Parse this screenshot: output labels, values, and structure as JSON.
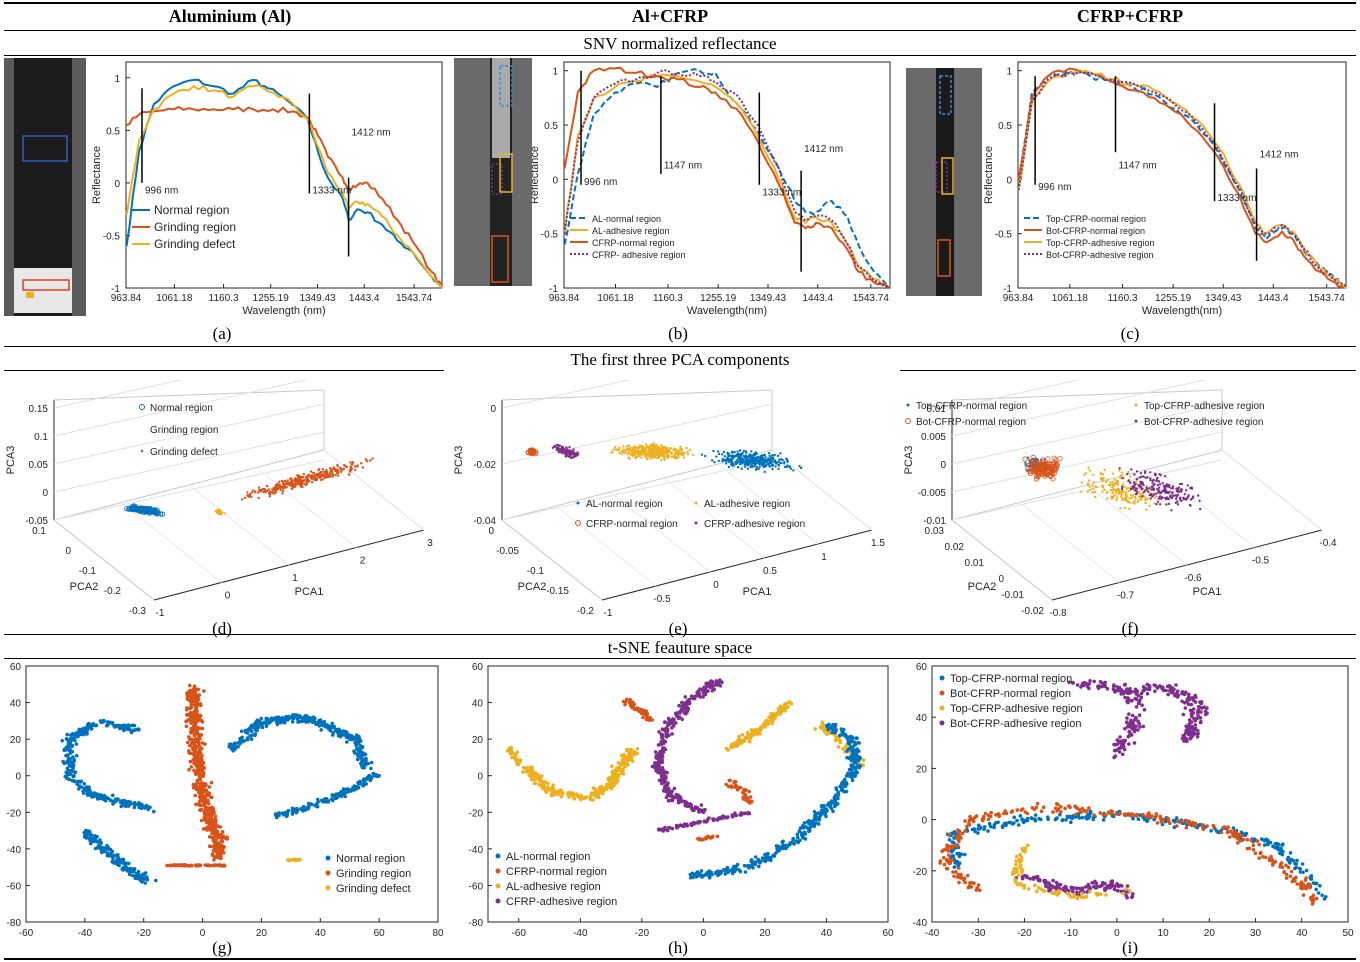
{
  "headers": {
    "col1": "Aluminium (Al)",
    "col2": "Al+CFRP",
    "col3": "CFRP+CFRP"
  },
  "sections": {
    "row1": "SNV normalized reflectance",
    "row2": "The first three PCA components",
    "row3": "t-SNE feauture space"
  },
  "captions": {
    "a": "(a)",
    "b": "(b)",
    "c": "(c)",
    "d": "(d)",
    "e": "(e)",
    "f": "(f)",
    "g": "(g)",
    "h": "(h)",
    "i": "(i)"
  },
  "colors": {
    "blue": "#0072BD",
    "orange": "#D95319",
    "yellow": "#EDB120",
    "purple": "#7E2F8E"
  },
  "chart_data": [
    {
      "id": "a",
      "type": "line",
      "xlabel": "Wavelength (nm)",
      "ylabel": "Reflectance",
      "xticks": [
        "963.84",
        "1061.18",
        "1160.3",
        "1255.19",
        "1349.43",
        "1443.4",
        "1543.74"
      ],
      "yticks": [
        "1",
        "0.5",
        "0",
        "-0.5",
        "-1"
      ],
      "xlim": [
        963.84,
        1600
      ],
      "ylim": [
        -1,
        1.15
      ],
      "annotations": [
        {
          "x": 996,
          "text": "996 nm"
        },
        {
          "x": 1333,
          "text": "1333 nm"
        },
        {
          "x": 1412,
          "text": "1412 nm"
        }
      ],
      "legend": "bottom-left",
      "series": [
        {
          "name": "Normal region",
          "color": "#0072BD",
          "x": [
            965,
            990,
            1020,
            1060,
            1100,
            1140,
            1180,
            1220,
            1250,
            1290,
            1330,
            1350,
            1370,
            1400,
            1412,
            1430,
            1450,
            1480,
            1510,
            1540,
            1580,
            1600
          ],
          "y": [
            -0.6,
            0.3,
            0.75,
            0.92,
            0.98,
            0.92,
            0.85,
            0.98,
            0.9,
            0.78,
            0.6,
            0.3,
            0.05,
            -0.15,
            -0.35,
            -0.25,
            -0.28,
            -0.4,
            -0.55,
            -0.65,
            -0.9,
            -1.0
          ]
        },
        {
          "name": "Grinding region",
          "color": "#D95319",
          "x": [
            965,
            990,
            1020,
            1060,
            1100,
            1140,
            1180,
            1220,
            1260,
            1300,
            1330,
            1350,
            1370,
            1400,
            1412,
            1430,
            1450,
            1480,
            1510,
            1540,
            1580,
            1600
          ],
          "y": [
            0.55,
            0.65,
            0.68,
            0.7,
            0.7,
            0.7,
            0.7,
            0.7,
            0.7,
            0.68,
            0.62,
            0.45,
            0.25,
            0.05,
            -0.05,
            -0.02,
            0.0,
            -0.15,
            -0.35,
            -0.55,
            -0.85,
            -1.0
          ]
        },
        {
          "name": "Grinding defect",
          "color": "#EDB120",
          "x": [
            965,
            990,
            1020,
            1060,
            1100,
            1140,
            1180,
            1220,
            1260,
            1300,
            1330,
            1350,
            1370,
            1400,
            1412,
            1430,
            1450,
            1480,
            1510,
            1540,
            1580,
            1600
          ],
          "y": [
            -0.3,
            0.4,
            0.7,
            0.85,
            0.92,
            0.88,
            0.82,
            0.92,
            0.86,
            0.75,
            0.6,
            0.35,
            0.1,
            -0.1,
            -0.25,
            -0.18,
            -0.2,
            -0.32,
            -0.5,
            -0.65,
            -0.9,
            -1.0
          ]
        }
      ]
    },
    {
      "id": "b",
      "type": "line",
      "xlabel": "Wavelength(nm)",
      "ylabel": "Reflectance",
      "xticks": [
        "963.84",
        "1061.18",
        "1160.3",
        "1255.19",
        "1349.43",
        "1443.4",
        "1543.74"
      ],
      "yticks": [
        "1",
        "0.5",
        "0",
        "-0.5",
        "-1"
      ],
      "xlim": [
        963.84,
        1580
      ],
      "ylim": [
        -1,
        1.08
      ],
      "annotations": [
        {
          "x": 996,
          "text": "996 nm"
        },
        {
          "x": 1147,
          "text": "1147 nm"
        },
        {
          "x": 1333,
          "text": "1333 nm"
        },
        {
          "x": 1412,
          "text": "1412 nm"
        }
      ],
      "legend": "bottom-left",
      "series": [
        {
          "name": "AL-normal region",
          "color": "#0072BD",
          "x": [
            965,
            990,
            1020,
            1060,
            1100,
            1140,
            1180,
            1220,
            1250,
            1290,
            1330,
            1370,
            1400,
            1420,
            1440,
            1470,
            1500,
            1520,
            1550,
            1580
          ],
          "y": [
            -0.6,
            0.05,
            0.6,
            0.8,
            0.88,
            0.85,
            0.98,
            1.0,
            0.98,
            0.7,
            0.45,
            0.1,
            -0.2,
            -0.3,
            -0.3,
            -0.2,
            -0.35,
            -0.6,
            -0.85,
            -1.0
          ]
        },
        {
          "name": "AL-adhesive region",
          "color": "#EDB120",
          "x": [
            965,
            990,
            1020,
            1060,
            1100,
            1140,
            1180,
            1220,
            1250,
            1290,
            1330,
            1370,
            1400,
            1420,
            1440,
            1470,
            1500,
            1520,
            1550,
            1580
          ],
          "y": [
            -0.5,
            0.4,
            0.75,
            0.85,
            0.9,
            0.95,
            0.95,
            0.9,
            0.85,
            0.7,
            0.4,
            0.0,
            -0.35,
            -0.4,
            -0.35,
            -0.4,
            -0.6,
            -0.8,
            -0.92,
            -1.0
          ]
        },
        {
          "name": "CFRP-normal region",
          "color": "#D95319",
          "x": [
            965,
            990,
            1020,
            1060,
            1100,
            1140,
            1180,
            1220,
            1250,
            1290,
            1330,
            1370,
            1400,
            1420,
            1440,
            1470,
            1500,
            1520,
            1550,
            1580
          ],
          "y": [
            0.1,
            0.8,
            1.0,
            1.02,
            0.98,
            0.95,
            0.92,
            0.85,
            0.8,
            0.65,
            0.35,
            -0.05,
            -0.4,
            -0.45,
            -0.4,
            -0.45,
            -0.65,
            -0.85,
            -0.95,
            -1.0
          ]
        },
        {
          "name": "CFRP- adhesive region",
          "color": "#7E2F8E",
          "x": [
            965,
            990,
            1020,
            1060,
            1100,
            1140,
            1180,
            1220,
            1250,
            1290,
            1330,
            1370,
            1400,
            1420,
            1440,
            1470,
            1500,
            1520,
            1550,
            1580
          ],
          "y": [
            -0.5,
            0.35,
            0.75,
            0.88,
            0.92,
            0.98,
            0.98,
            0.95,
            0.9,
            0.78,
            0.5,
            0.1,
            -0.3,
            -0.38,
            -0.33,
            -0.38,
            -0.6,
            -0.8,
            -0.93,
            -1.0
          ]
        }
      ]
    },
    {
      "id": "c",
      "type": "line",
      "xlabel": "Wavelength(nm)",
      "ylabel": "Reflectance",
      "xticks": [
        "963.84",
        "1061.18",
        "1160.3",
        "1255.19",
        "1349.43",
        "1443.4",
        "1543.74"
      ],
      "yticks": [
        "1",
        "0.5",
        "0",
        "-0.5",
        "-1"
      ],
      "xlim": [
        963.84,
        1580
      ],
      "ylim": [
        -1,
        1.08
      ],
      "annotations": [
        {
          "x": 996,
          "text": "996 nm"
        },
        {
          "x": 1147,
          "text": "1147 nm"
        },
        {
          "x": 1333,
          "text": "1333 nm"
        },
        {
          "x": 1412,
          "text": "1412 nm"
        }
      ],
      "legend": "bottom-left",
      "series": [
        {
          "name": "Top-CFRP-normal region",
          "color": "#0072BD",
          "x": [
            965,
            990,
            1020,
            1060,
            1100,
            1140,
            1180,
            1220,
            1260,
            1300,
            1340,
            1380,
            1410,
            1430,
            1460,
            1480,
            1500,
            1530,
            1560,
            1580
          ],
          "y": [
            0.0,
            0.8,
            0.95,
            1.0,
            0.95,
            0.9,
            0.85,
            0.78,
            0.65,
            0.5,
            0.25,
            -0.1,
            -0.45,
            -0.55,
            -0.45,
            -0.5,
            -0.65,
            -0.8,
            -0.92,
            -0.98
          ]
        },
        {
          "name": "Bot-CFRP-normal region",
          "color": "#D95319",
          "x": [
            965,
            990,
            1020,
            1060,
            1100,
            1140,
            1180,
            1220,
            1260,
            1300,
            1340,
            1380,
            1410,
            1430,
            1460,
            1480,
            1500,
            1530,
            1560,
            1580
          ],
          "y": [
            0.0,
            0.75,
            0.95,
            1.02,
            0.98,
            0.9,
            0.82,
            0.75,
            0.62,
            0.45,
            0.2,
            -0.15,
            -0.5,
            -0.58,
            -0.48,
            -0.55,
            -0.7,
            -0.85,
            -0.95,
            -1.0
          ]
        },
        {
          "name": "Top-CFRP-adhesive region",
          "color": "#EDB120",
          "x": [
            965,
            990,
            1020,
            1060,
            1100,
            1140,
            1180,
            1220,
            1260,
            1300,
            1340,
            1380,
            1410,
            1430,
            1460,
            1480,
            1500,
            1530,
            1560,
            1580
          ],
          "y": [
            -0.1,
            0.7,
            0.9,
            0.98,
            0.98,
            0.92,
            0.88,
            0.82,
            0.7,
            0.55,
            0.3,
            -0.05,
            -0.4,
            -0.5,
            -0.42,
            -0.48,
            -0.62,
            -0.82,
            -0.93,
            -1.0
          ]
        },
        {
          "name": "Bot-CFRP-adhesive region",
          "color": "#7E2F8E",
          "x": [
            965,
            990,
            1020,
            1060,
            1100,
            1140,
            1180,
            1220,
            1260,
            1300,
            1340,
            1380,
            1410,
            1430,
            1460,
            1480,
            1500,
            1530,
            1560,
            1580
          ],
          "y": [
            -0.1,
            0.72,
            0.92,
            0.98,
            0.98,
            0.92,
            0.88,
            0.8,
            0.68,
            0.52,
            0.28,
            -0.08,
            -0.42,
            -0.5,
            -0.42,
            -0.5,
            -0.64,
            -0.82,
            -0.93,
            -0.99
          ]
        }
      ]
    },
    {
      "id": "d",
      "type": "scatter",
      "xlabel": "PCA1",
      "ylabel": "PCA2",
      "zlabel": "PCA3",
      "zticks": [
        "0.15",
        "0.1",
        "0.05",
        "0",
        "-0.05"
      ],
      "yticks": [
        "0.1",
        "0",
        "-0.1",
        "-0.2",
        "-0.3"
      ],
      "xticks": [
        "-1",
        "0",
        "1",
        "2",
        "3"
      ],
      "legend": "top-left",
      "series": [
        {
          "name": "Normal region",
          "color": "#0072BD",
          "marker": "circle"
        },
        {
          "name": "Grinding region",
          "color": "#D95319",
          "marker": "none"
        },
        {
          "name": "Grinding defect",
          "color": "#D95319",
          "marker": "dot"
        }
      ]
    },
    {
      "id": "e",
      "type": "scatter",
      "xlabel": "PCA1",
      "ylabel": "PCA2",
      "zlabel": "PCA3",
      "zticks": [
        "0",
        "-0.02",
        "-0.04"
      ],
      "yticks": [
        "0",
        "-0.05",
        "-0.1",
        "-0.15",
        "-0.2"
      ],
      "xticks": [
        "-1",
        "-0.5",
        "0",
        "0.5",
        "1",
        "1.5"
      ],
      "legend": "bottom",
      "series": [
        {
          "name": "AL-normal region",
          "color": "#0072BD",
          "marker": "dot"
        },
        {
          "name": "AL-adhesive region",
          "color": "#EDB120",
          "marker": "dot"
        },
        {
          "name": "CFRP-normal region",
          "color": "#D95319",
          "marker": "circle"
        },
        {
          "name": "CFRP-adhesive region",
          "color": "#7E2F8E",
          "marker": "dot"
        }
      ]
    },
    {
      "id": "f",
      "type": "scatter",
      "xlabel": "PCA1",
      "ylabel": "PCA2",
      "zlabel": "PCA3",
      "zticks": [
        "0.01",
        "0.005",
        "0",
        "-0.005",
        "-0.01"
      ],
      "yticks": [
        "0.03",
        "0.02",
        "0.01",
        "0",
        "-0.01",
        "-0.02"
      ],
      "xticks": [
        "-0.8",
        "-0.7",
        "-0.6",
        "-0.5",
        "-0.4"
      ],
      "legend": "top",
      "series": [
        {
          "name": "Top-CFRP-normal region",
          "color": "#0072BD",
          "marker": "dot"
        },
        {
          "name": "Top-CFRP-adhesive region",
          "color": "#EDB120",
          "marker": "dot"
        },
        {
          "name": "Bot-CFRP-normal region",
          "color": "#D95319",
          "marker": "circle"
        },
        {
          "name": "Bot-CFRP-adhesive region",
          "color": "#7E2F8E",
          "marker": "dot"
        }
      ]
    },
    {
      "id": "g",
      "type": "scatter",
      "xlim": [
        -60,
        80
      ],
      "ylim": [
        -80,
        60
      ],
      "xticks": [
        "-60",
        "-40",
        "-20",
        "0",
        "20",
        "40",
        "60",
        "80"
      ],
      "yticks": [
        "60",
        "40",
        "20",
        "0",
        "-20",
        "-40",
        "-60",
        "-80"
      ],
      "legend": "bottom-right",
      "series": [
        {
          "name": "Normal region",
          "color": "#0072BD"
        },
        {
          "name": "Grinding region",
          "color": "#D95319"
        },
        {
          "name": "Grinding defect",
          "color": "#EDB120"
        }
      ]
    },
    {
      "id": "h",
      "type": "scatter",
      "xlim": [
        -70,
        60
      ],
      "ylim": [
        -80,
        60
      ],
      "xticks": [
        "-60",
        "-40",
        "-20",
        "0",
        "20",
        "40",
        "60"
      ],
      "yticks": [
        "60",
        "40",
        "20",
        "0",
        "-20",
        "-40",
        "-60",
        "-80"
      ],
      "legend": "bottom-left",
      "series": [
        {
          "name": "AL-normal region",
          "color": "#0072BD"
        },
        {
          "name": "CFRP-normal region",
          "color": "#D95319"
        },
        {
          "name": "AL-adhesive region",
          "color": "#EDB120"
        },
        {
          "name": "CFRP-adhesive region",
          "color": "#7E2F8E"
        }
      ]
    },
    {
      "id": "i",
      "type": "scatter",
      "xlim": [
        -40,
        50
      ],
      "ylim": [
        -40,
        60
      ],
      "xticks": [
        "-40",
        "-30",
        "-20",
        "-10",
        "0",
        "10",
        "20",
        "30",
        "40",
        "50"
      ],
      "yticks": [
        "60",
        "40",
        "20",
        "0",
        "-20",
        "-40"
      ],
      "legend": "top-left",
      "series": [
        {
          "name": "Top-CFRP-normal region",
          "color": "#0072BD"
        },
        {
          "name": "Bot-CFRP-normal region",
          "color": "#D95319"
        },
        {
          "name": "Top-CFRP-adhesive region",
          "color": "#EDB120"
        },
        {
          "name": "Bot-CFRP-adhesive region",
          "color": "#7E2F8E"
        }
      ]
    }
  ]
}
